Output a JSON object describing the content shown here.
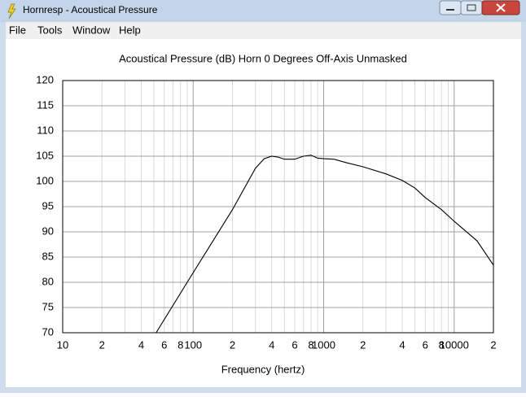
{
  "window": {
    "title": "Hornresp - Acoustical Pressure"
  },
  "menu": [
    "File",
    "Tools",
    "Window",
    "Help"
  ],
  "chart_data": {
    "type": "line",
    "title": "Acoustical Pressure (dB)   Horn   0 Degrees Off-Axis   Unmasked",
    "x_label": "Frequency (hertz)",
    "xscale": "log",
    "grid": true,
    "xlim": [
      10,
      20000
    ],
    "ylim": [
      70,
      120
    ],
    "yticks": [
      70,
      75,
      80,
      85,
      90,
      95,
      100,
      105,
      110,
      115,
      120
    ],
    "xticks": [
      10,
      {
        "value": 20,
        "label": "2"
      },
      {
        "value": 40,
        "label": "4"
      },
      {
        "value": 60,
        "label": "6"
      },
      {
        "value": 80,
        "label": "8"
      },
      100,
      {
        "value": 200,
        "label": "2"
      },
      {
        "value": 400,
        "label": "4"
      },
      {
        "value": 600,
        "label": "6"
      },
      {
        "value": 800,
        "label": "8"
      },
      1000,
      {
        "value": 2000,
        "label": "2"
      },
      {
        "value": 4000,
        "label": "4"
      },
      {
        "value": 6000,
        "label": "6"
      },
      {
        "value": 8000,
        "label": "8"
      },
      10000,
      {
        "value": 20000,
        "label": "2"
      }
    ],
    "xminor": [
      30,
      50,
      70,
      90,
      300,
      500,
      700,
      900,
      3000,
      5000,
      7000,
      9000
    ],
    "series": [
      {
        "color": "#000000",
        "x": [
          52,
          90,
          200,
          300,
          350,
          400,
          450,
          500,
          600,
          700,
          800,
          900,
          1000,
          1200,
          1500,
          2000,
          3000,
          4000,
          5000,
          6000,
          8000,
          10000,
          15000,
          20000
        ],
        "values": [
          70,
          80,
          94.4,
          102.6,
          104.5,
          105,
          104.8,
          104.4,
          104.4,
          105,
          105.2,
          104.6,
          104.5,
          104.4,
          103.7,
          102.9,
          101.5,
          100.2,
          98.7,
          96.8,
          94.4,
          92.1,
          88.2,
          83.4
        ]
      }
    ]
  }
}
